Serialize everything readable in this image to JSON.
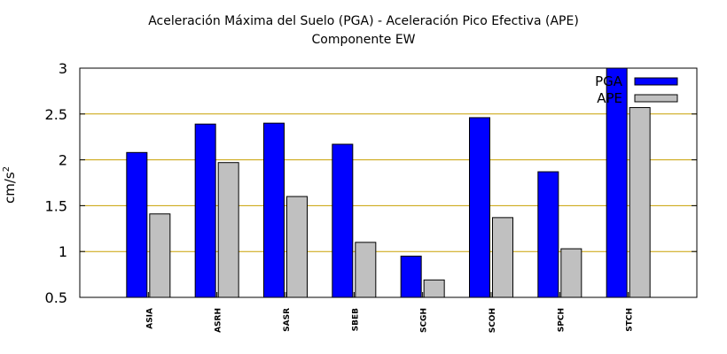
{
  "chart_data": {
    "type": "bar",
    "title": "Aceleración Máxima del Suelo (PGA) -  Aceleración Pico Efectiva (APE)",
    "subtitle": "Componente EW",
    "xlabel": "",
    "ylabel": "cm/s",
    "ylabel_superscript": "2",
    "ylim": [
      0.5,
      3
    ],
    "yticks": [
      "0.5",
      "1",
      "1.5",
      "2",
      "2.5",
      "3"
    ],
    "ytick_values": [
      0.5,
      1,
      1.5,
      2,
      2.5,
      3
    ],
    "grid": true,
    "grid_color": "#c8a000",
    "legend_position": "top-right",
    "categories": [
      "ASIA",
      "ASRH",
      "SASR",
      "SBEB",
      "SCGH",
      "SCOH",
      "SPCH",
      "STCH"
    ],
    "series": [
      {
        "name": "PGA",
        "color": "#0000ff",
        "values": [
          2.08,
          2.39,
          2.4,
          2.17,
          0.95,
          2.46,
          1.87,
          3.02
        ]
      },
      {
        "name": "APE",
        "color": "#c0c0c0",
        "values": [
          1.41,
          1.97,
          1.6,
          1.1,
          0.69,
          1.37,
          1.03,
          2.57
        ]
      }
    ]
  }
}
